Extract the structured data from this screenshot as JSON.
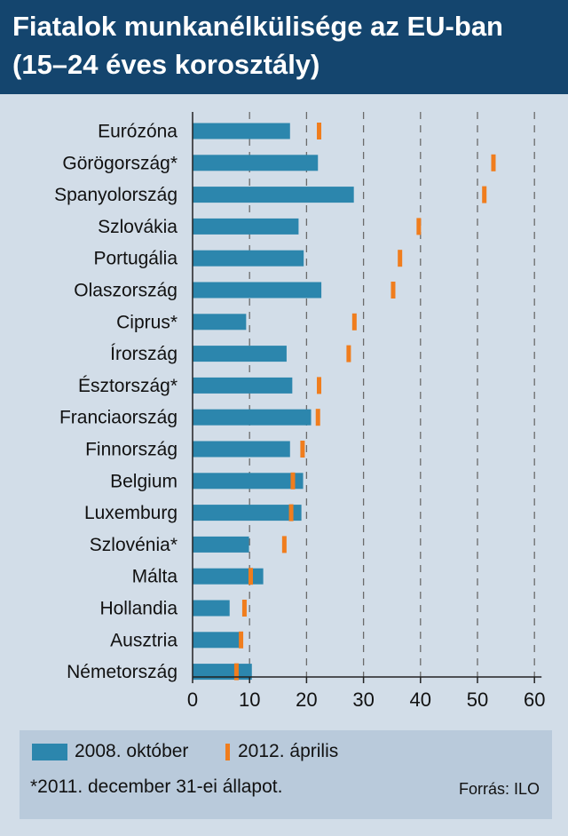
{
  "title": {
    "line1": "Fiatalok munkanélkülisége az EU-ban",
    "line2": "(15–24 éves korosztály)"
  },
  "chart_data": {
    "type": "bar",
    "orientation": "horizontal",
    "categories": [
      "Eurózóna",
      "Görögország*",
      "Spanyolország",
      "Szlovákia",
      "Portugália",
      "Olaszország",
      "Ciprus*",
      "Írország",
      "Észtország*",
      "Franciaország",
      "Finnország",
      "Belgium",
      "Luxemburg",
      "Szlovénia*",
      "Málta",
      "Hollandia",
      "Ausztria",
      "Németország"
    ],
    "series": [
      {
        "name": "2008. október",
        "type": "bar",
        "color": "#2c86ad",
        "values": [
          17.1,
          22.0,
          28.3,
          18.6,
          19.5,
          22.6,
          9.4,
          16.5,
          17.5,
          20.8,
          17.1,
          19.4,
          19.1,
          9.9,
          12.4,
          6.5,
          8.8,
          10.4
        ]
      },
      {
        "name": "2012. április",
        "type": "marker",
        "color": "#f07d1d",
        "values": [
          22.2,
          52.8,
          51.2,
          39.7,
          36.4,
          35.2,
          28.4,
          27.4,
          22.2,
          22.0,
          19.3,
          17.6,
          17.3,
          16.1,
          10.2,
          9.1,
          8.5,
          7.7
        ]
      }
    ],
    "xlim": [
      0,
      60
    ],
    "xticks": [
      "0",
      "10",
      "20",
      "30",
      "40",
      "50",
      "60"
    ],
    "grid": "dashed vertical at 30, 40, 50, 60",
    "legend": "bottom"
  },
  "legend": {
    "label1": "2008. október",
    "label2": "2012. április"
  },
  "footnote": "*2011. december 31-ei állapot.",
  "source": "Forrás: ILO"
}
